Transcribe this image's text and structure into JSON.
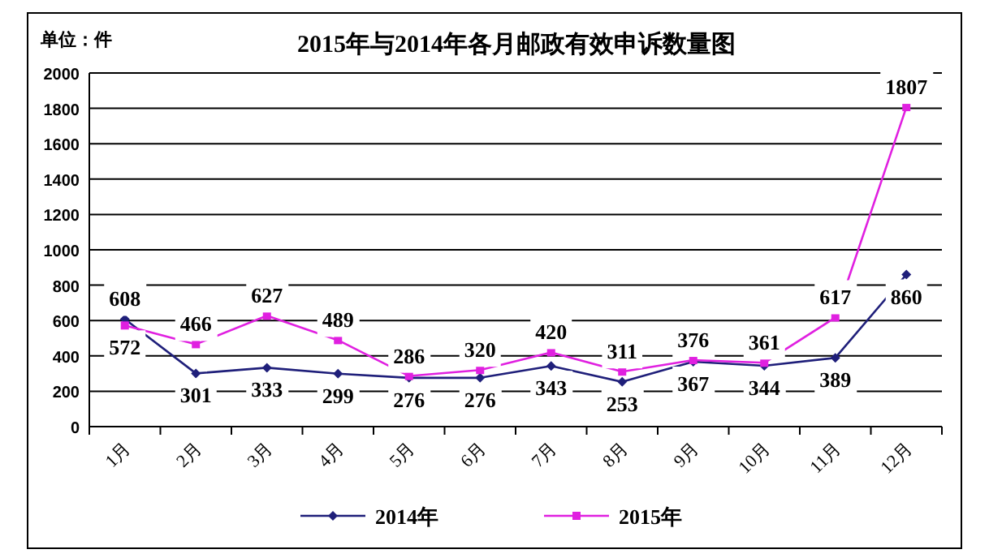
{
  "chart_data": {
    "type": "line",
    "title": "2015年与2014年各月邮政有效申诉数量图",
    "ylabel": "单位：件",
    "categories": [
      "1月",
      "2月",
      "3月",
      "4月",
      "5月",
      "6月",
      "7月",
      "8月",
      "9月",
      "10月",
      "11月",
      "12月"
    ],
    "series": [
      {
        "name": "2014年",
        "color": "#1f1f7a",
        "marker": "diamond",
        "values": [
          608,
          301,
          333,
          299,
          276,
          276,
          343,
          253,
          367,
          344,
          389,
          860
        ]
      },
      {
        "name": "2015年",
        "color": "#e020e0",
        "marker": "square",
        "values": [
          572,
          466,
          627,
          489,
          286,
          320,
          420,
          311,
          376,
          361,
          617,
          1807
        ]
      }
    ],
    "ylim": [
      0,
      2000
    ],
    "yticks": [
      0,
      200,
      400,
      600,
      800,
      1000,
      1200,
      1400,
      1600,
      1800,
      2000
    ],
    "grid": "y",
    "data_labels": true,
    "legend": "bottom"
  }
}
